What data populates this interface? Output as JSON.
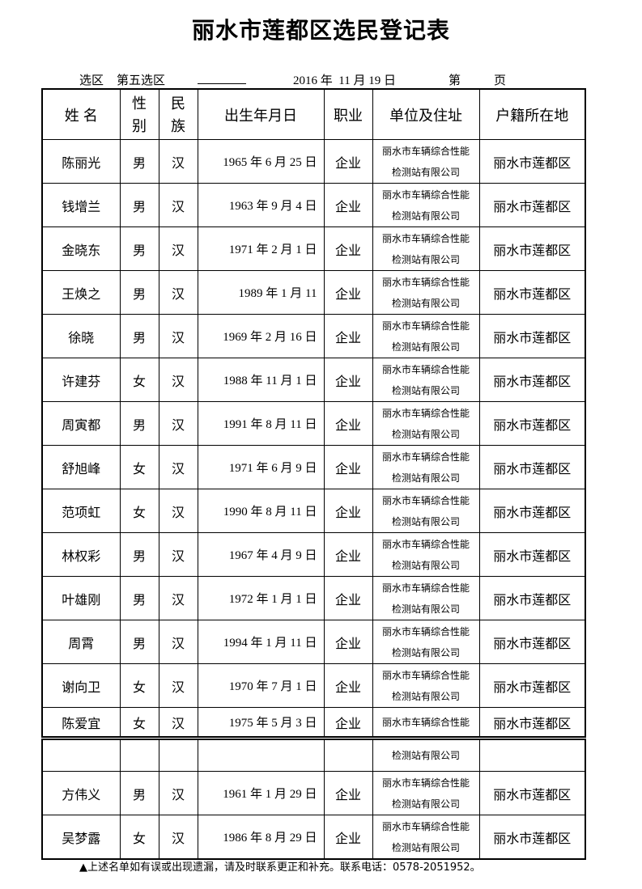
{
  "title": "丽水市莲都区选民登记表",
  "meta": {
    "district_label": "选区",
    "district_value": "第五选区",
    "date": "2016 年  11 月 19 日",
    "page_label_1": "第",
    "page_label_2": "页"
  },
  "headers": [
    "姓 名",
    "性别",
    "民族",
    "出生年月日",
    "职业",
    "单位及住址",
    "户籍所在地"
  ],
  "rows": [
    {
      "name": "陈丽光",
      "sex": "男",
      "ethnic": "汉",
      "birth": "1965 年 6 月 25 日",
      "job": "企业",
      "addr1": "丽水市车辆综合性能",
      "addr2": "检测站有限公司",
      "hukou": "丽水市莲都区"
    },
    {
      "name": "钱增兰",
      "sex": "男",
      "ethnic": "汉",
      "birth": "1963 年  9 月 4 日",
      "job": "企业",
      "addr1": "丽水市车辆综合性能",
      "addr2": "检测站有限公司",
      "hukou": "丽水市莲都区"
    },
    {
      "name": "金晓东",
      "sex": "男",
      "ethnic": "汉",
      "birth": "1971 年 2 月 1  日",
      "job": "企业",
      "addr1": "丽水市车辆综合性能",
      "addr2": "检测站有限公司",
      "hukou": "丽水市莲都区"
    },
    {
      "name": "王焕之",
      "sex": "男",
      "ethnic": "汉",
      "birth": "1989 年 1  月 11",
      "job": "企业",
      "addr1": "丽水市车辆综合性能",
      "addr2": "检测站有限公司",
      "hukou": "丽水市莲都区"
    },
    {
      "name": "徐晓",
      "sex": "男",
      "ethnic": "汉",
      "birth": "1969 年 2 月 16 日",
      "job": "企业",
      "addr1": "丽水市车辆综合性能",
      "addr2": "检测站有限公司",
      "hukou": "丽水市莲都区"
    },
    {
      "name": "许建芬",
      "sex": "女",
      "ethnic": "汉",
      "birth": "1988 年 11 月 1 日",
      "job": "企业",
      "addr1": "丽水市车辆综合性能",
      "addr2": "检测站有限公司",
      "hukou": "丽水市莲都区"
    },
    {
      "name": "周寅都",
      "sex": "男",
      "ethnic": "汉",
      "birth": "1991 年 8 月 11 日",
      "job": "企业",
      "addr1": "丽水市车辆综合性能",
      "addr2": "检测站有限公司",
      "hukou": "丽水市莲都区"
    },
    {
      "name": "舒旭峰",
      "sex": "女",
      "ethnic": "汉",
      "birth": "1971 年 6 月 9 日",
      "job": "企业",
      "addr1": "丽水市车辆综合性能",
      "addr2": "检测站有限公司",
      "hukou": "丽水市莲都区"
    },
    {
      "name": "范项虹",
      "sex": "女",
      "ethnic": "汉",
      "birth": "1990 年 8 月 11 日",
      "job": "企业",
      "addr1": "丽水市车辆综合性能",
      "addr2": "检测站有限公司",
      "hukou": "丽水市莲都区"
    },
    {
      "name": "林权彩",
      "sex": "男",
      "ethnic": "汉",
      "birth": "1967 年 4 月 9 日",
      "job": "企业",
      "addr1": "丽水市车辆综合性能",
      "addr2": "检测站有限公司",
      "hukou": "丽水市莲都区"
    },
    {
      "name": "叶雄刚",
      "sex": "男",
      "ethnic": "汉",
      "birth": "1972 年 1 月 1  日",
      "job": "企业",
      "addr1": "丽水市车辆综合性能",
      "addr2": "检测站有限公司",
      "hukou": "丽水市莲都区"
    },
    {
      "name": "周霄",
      "sex": "男",
      "ethnic": "汉",
      "birth": "1994 年 1 月 11 日",
      "job": "企业",
      "addr1": "丽水市车辆综合性能",
      "addr2": "检测站有限公司",
      "hukou": "丽水市莲都区"
    },
    {
      "name": "谢向卫",
      "sex": "女",
      "ethnic": "汉",
      "birth": "1970 年 7 月 1  日",
      "job": "企业",
      "addr1": "丽水市车辆综合性能",
      "addr2": "检测站有限公司",
      "hukou": "丽水市莲都区"
    }
  ],
  "split_row": {
    "name": "陈爱宜",
    "sex": "女",
    "ethnic": "汉",
    "birth": "1975 年 5 月 3 日",
    "job": "企业",
    "addr1": "丽水市车辆综合性能",
    "addr2": "检测站有限公司",
    "hukou": "丽水市莲都区"
  },
  "rows2": [
    {
      "name": "方伟义",
      "sex": "男",
      "ethnic": "汉",
      "birth": "1961 年 1 月 29 日",
      "job": "企业",
      "addr1": "丽水市车辆综合性能",
      "addr2": "检测站有限公司",
      "hukou": "丽水市莲都区"
    },
    {
      "name": "吴梦露",
      "sex": "女",
      "ethnic": "汉",
      "birth": "1986 年 8 月 29  日",
      "job": "企业",
      "addr1": "丽水市车辆综合性能",
      "addr2": "检测站有限公司",
      "hukou": "丽水市莲都区"
    }
  ],
  "footer": "▲上述名单如有误或出现遗漏，请及时联系更正和补充。联系电话：0578-2051952。"
}
